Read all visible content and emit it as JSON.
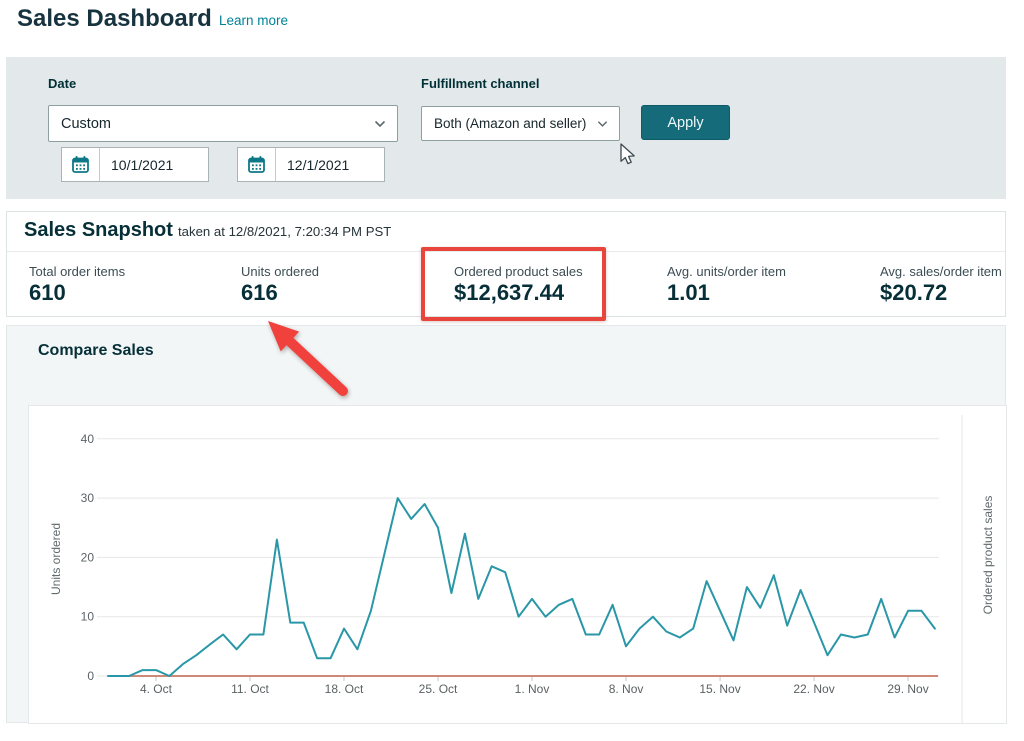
{
  "page": {
    "title": "Sales Dashboard",
    "learn_more": "Learn more"
  },
  "filters": {
    "date_label": "Date",
    "date_value": "Custom",
    "start_date": "10/1/2021",
    "end_date": "12/1/2021",
    "channel_label": "Fulfillment channel",
    "channel_value": "Both (Amazon and seller)",
    "apply_label": "Apply"
  },
  "snapshot": {
    "title": "Sales Snapshot",
    "taken_at": "taken at 12/8/2021, 7:20:34 PM PST",
    "metrics": [
      {
        "label": "Total order items",
        "value": "610"
      },
      {
        "label": "Units ordered",
        "value": "616"
      },
      {
        "label": "Ordered product sales",
        "value": "$12,637.44"
      },
      {
        "label": "Avg. units/order item",
        "value": "1.01"
      },
      {
        "label": "Avg. sales/order item",
        "value": "$20.72"
      }
    ]
  },
  "compare": {
    "title": "Compare Sales"
  },
  "chart_data": {
    "type": "line",
    "title": "Compare Sales",
    "xlabel": "",
    "ylabel": "Units ordered",
    "ylabel_right": "Ordered product sales",
    "ylim": [
      0,
      40
    ],
    "yticks": [
      0,
      10,
      20,
      30,
      40
    ],
    "xticklabels": [
      "4. Oct",
      "11. Oct",
      "18. Oct",
      "25. Oct",
      "1. Nov",
      "8. Nov",
      "15. Nov",
      "22. Nov",
      "29. Nov"
    ],
    "x_range": "2021-10-01 to 2021-12-01",
    "grid": true,
    "legend": "none",
    "series": [
      {
        "name": "Units ordered",
        "color": "#2997a7",
        "values": [
          0,
          0,
          1,
          1,
          0,
          2,
          3.5,
          5.3,
          7,
          4.5,
          7,
          7,
          23,
          9,
          9,
          3,
          3,
          8,
          4.5,
          11,
          20.5,
          30,
          26.5,
          29,
          25,
          14,
          24,
          13,
          18.5,
          17.5,
          10,
          13,
          10,
          12,
          13,
          7,
          7,
          12,
          5,
          8,
          10,
          7.5,
          6.5,
          8,
          16,
          11,
          6,
          15,
          11.5,
          17,
          8.5,
          14.5,
          9,
          3.5,
          7,
          6.5,
          7,
          13,
          6.5,
          11,
          11,
          8
        ]
      },
      {
        "name": "Ordered product sales",
        "color": "#cf8878",
        "constant": 0
      }
    ]
  },
  "annotations": {
    "highlight_box_color": "#e8463c",
    "arrow_color": "#f0413c"
  },
  "colors": {
    "accent_teal": "#008296",
    "apply_button": "#156b7a",
    "panel_gray": "#e4eaea",
    "heading": "#062f38"
  }
}
